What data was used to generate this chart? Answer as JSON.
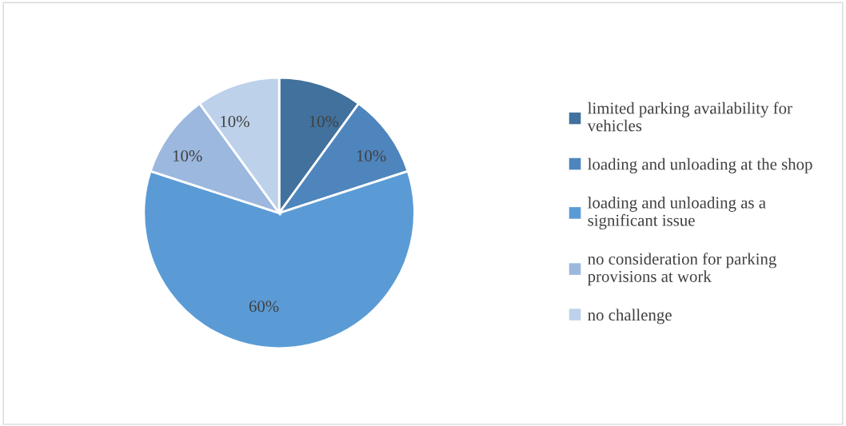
{
  "chart_data": {
    "type": "pie",
    "categories": [
      "limited parking availability for vehicles",
      "loading and unloading at the shop",
      "loading and unloading as a significant issue",
      "no consideration for parking provisions at work",
      "no challenge"
    ],
    "values": [
      10,
      10,
      60,
      10,
      10
    ],
    "value_labels": [
      "10%",
      "10%",
      "60%",
      "10%",
      "10%"
    ],
    "colors": [
      "#41719c",
      "#4e85bd",
      "#5b9bd5",
      "#9cb8df",
      "#bdd1ea"
    ],
    "legend": "right"
  }
}
